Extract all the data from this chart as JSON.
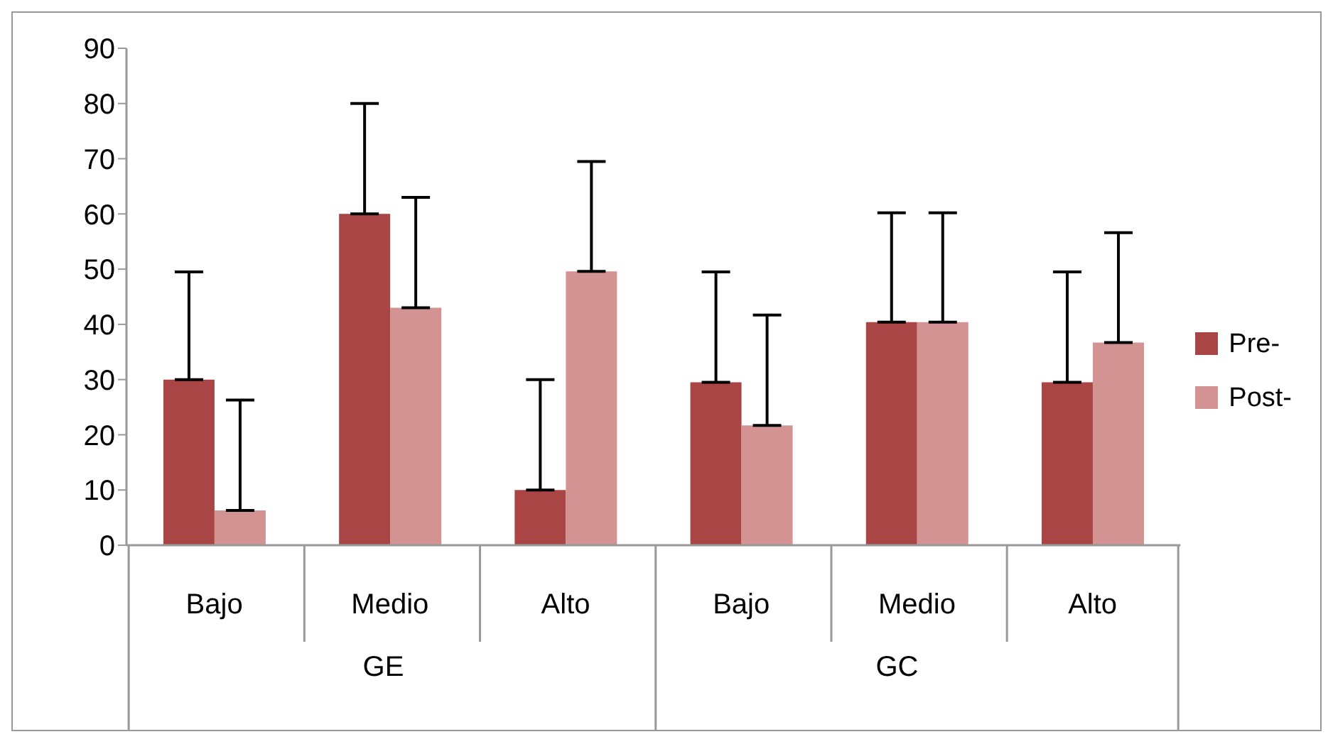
{
  "chart_data": {
    "type": "bar",
    "categories": [
      "Bajo",
      "Medio",
      "Alto",
      "Bajo",
      "Medio",
      "Alto"
    ],
    "series": [
      {
        "name": "Pre-",
        "color": "#a94645",
        "values": [
          30,
          60,
          10,
          29.5,
          40.4,
          29.5
        ],
        "errors": [
          [
            30,
            49.5
          ],
          [
            60,
            80
          ],
          [
            10,
            30
          ],
          [
            29.5,
            49.5
          ],
          [
            40.4,
            60.2
          ],
          [
            29.5,
            49.5
          ]
        ]
      },
      {
        "name": "Post-",
        "color": "#d39393",
        "values": [
          6.3,
          43,
          49.6,
          21.7,
          40.4,
          36.7
        ],
        "errors": [
          [
            6.3,
            26.3
          ],
          [
            43,
            63
          ],
          [
            49.6,
            69.5
          ],
          [
            21.7,
            41.7
          ],
          [
            40.4,
            60.2
          ],
          [
            36.7,
            56.6
          ]
        ]
      }
    ],
    "annotations": [
      "GE",
      "GC"
    ],
    "ylim": [
      0,
      90
    ],
    "yticks": [
      0,
      10,
      20,
      30,
      40,
      50,
      60,
      70,
      80,
      90
    ],
    "grid": false,
    "legend": "right"
  }
}
